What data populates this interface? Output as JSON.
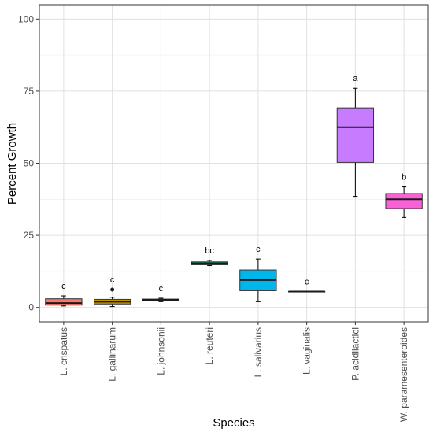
{
  "chart_data": {
    "type": "box",
    "xlabel": "Species",
    "ylabel": "Percent Growth",
    "ylim": [
      -5,
      105
    ],
    "y_ticks": [
      0,
      25,
      50,
      75,
      100
    ],
    "grid": true,
    "legend": "none",
    "categories": [
      {
        "name": "L. crispatus",
        "color": "#F8766D",
        "min": 0.5,
        "q1": 0.8,
        "median": 1.5,
        "q3": 3.0,
        "max": 4.0,
        "outliers": [],
        "letter": "c"
      },
      {
        "name": "L. gallinarum",
        "color": "#C49A00",
        "min": 0.3,
        "q1": 1.2,
        "median": 2.0,
        "q3": 2.8,
        "max": 3.5,
        "outliers": [
          6.2
        ],
        "letter": "c"
      },
      {
        "name": "L. johnsonii",
        "color": "#53B400",
        "min": 2.0,
        "q1": 2.3,
        "median": 2.6,
        "q3": 2.9,
        "max": 3.2,
        "outliers": [],
        "letter": "c"
      },
      {
        "name": "L. reuteri",
        "color": "#00C094",
        "min": 14.5,
        "q1": 14.8,
        "median": 15.3,
        "q3": 15.8,
        "max": 16.3,
        "outliers": [],
        "letter": "bc"
      },
      {
        "name": "L. salivarius",
        "color": "#00B6EB",
        "min": 2.0,
        "q1": 5.8,
        "median": 9.5,
        "q3": 13.0,
        "max": 16.8,
        "outliers": [],
        "letter": "c"
      },
      {
        "name": "L. vaginalis",
        "color": "#A58AFF",
        "min": 5.5,
        "q1": 5.5,
        "median": 5.5,
        "q3": 5.5,
        "max": 5.5,
        "outliers": [],
        "letter": "c"
      },
      {
        "name": "P. acidilactici",
        "color": "#C77CFF",
        "min": 38.5,
        "q1": 50.3,
        "median": 62.5,
        "q3": 69.2,
        "max": 76.0,
        "outliers": [],
        "letter": "a"
      },
      {
        "name": "W. paramesenteroides",
        "color": "#FB61D7",
        "min": 31.2,
        "q1": 34.3,
        "median": 37.5,
        "q3": 39.5,
        "max": 41.8,
        "outliers": [],
        "letter": "b"
      }
    ]
  }
}
